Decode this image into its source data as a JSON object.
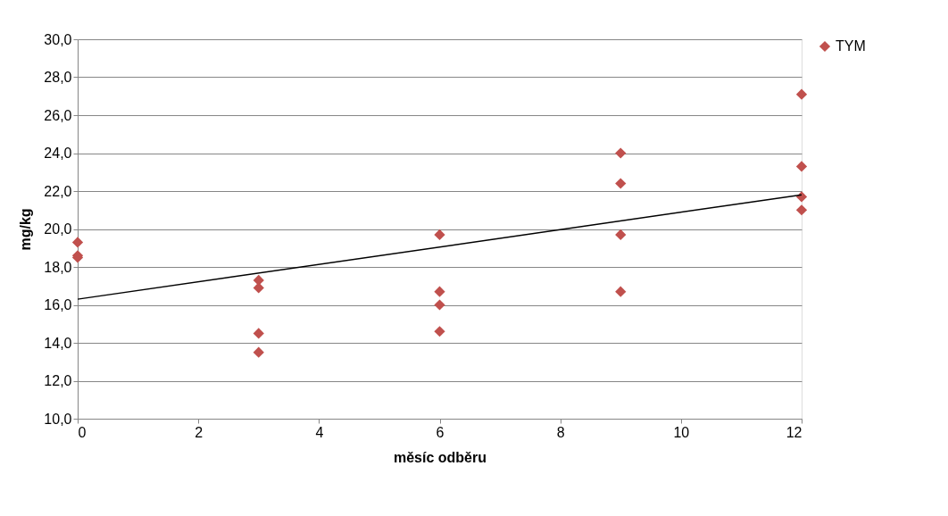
{
  "chart_data": {
    "type": "scatter",
    "xlabel": "měsíc odběru",
    "ylabel": "mg/kg",
    "xlim": [
      0,
      12
    ],
    "xticks": [
      0,
      2,
      4,
      6,
      8,
      10,
      12
    ],
    "ylim": [
      10,
      30
    ],
    "yticks": [
      {
        "value": 10,
        "label": "10,0"
      },
      {
        "value": 12,
        "label": "12,0"
      },
      {
        "value": 14,
        "label": "14,0"
      },
      {
        "value": 16,
        "label": "16,0"
      },
      {
        "value": 18,
        "label": "18,0"
      },
      {
        "value": 20,
        "label": "20,0"
      },
      {
        "value": 22,
        "label": "22,0"
      },
      {
        "value": 24,
        "label": "24,0"
      },
      {
        "value": 26,
        "label": "26,0"
      },
      {
        "value": 28,
        "label": "28,0"
      },
      {
        "value": 30,
        "label": "30,0"
      }
    ],
    "grid": "y",
    "legend": "right",
    "series": [
      {
        "name": "TYM",
        "color": "#c0504d",
        "marker": "diamond",
        "x": [
          0,
          0,
          0,
          3,
          3,
          3,
          3,
          6,
          6,
          6,
          6,
          9,
          9,
          9,
          9,
          12,
          12,
          12,
          12
        ],
        "values": [
          19.3,
          18.5,
          18.6,
          17.3,
          16.9,
          14.5,
          13.5,
          19.7,
          16.7,
          16.0,
          14.6,
          24.0,
          22.4,
          19.7,
          16.7,
          27.1,
          23.3,
          21.7,
          21.0
        ]
      },
      {
        "type": "line",
        "color": "#000000",
        "marker": "none",
        "x": [
          0,
          12
        ],
        "values": [
          16.3,
          21.8
        ]
      }
    ]
  }
}
